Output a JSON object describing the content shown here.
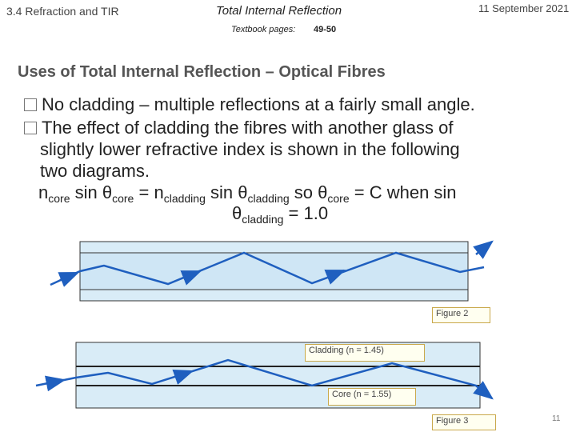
{
  "header": {
    "section": "3.4 Refraction and TIR",
    "title": "Total Internal Reflection",
    "date": "11 September 2021",
    "textbook_label": "Textbook pages:",
    "textbook_pages": "49-50"
  },
  "slide": {
    "heading": "Uses of Total Internal Reflection – Optical Fibres",
    "bullets": [
      "No cladding – multiple reflections at a fairly small angle.",
      "The effect of cladding the fibres with another glass of"
    ],
    "continuation": [
      "slightly lower refractive index is shown in the following",
      "two diagrams."
    ],
    "equation": {
      "n": "n",
      "core": "core",
      "cladding": "cladding",
      "sin": "sin",
      "theta": "θ",
      "equals": "=",
      "so": "so",
      "c_when_sin": "= C when sin",
      "one": "= 1.0"
    },
    "page_number": "11"
  },
  "figures": {
    "figure2_label": "Figure 2",
    "figure3_label": "Figure 3",
    "cladding_label": "Cladding (n = 1.45)",
    "core_label": "Core (n = 1.55)"
  },
  "colors": {
    "cladding_fill": "#d9ecf7",
    "core_fill": "#cfe6f5",
    "ray": "#1f5fbf",
    "bullet_border": "#777777"
  }
}
